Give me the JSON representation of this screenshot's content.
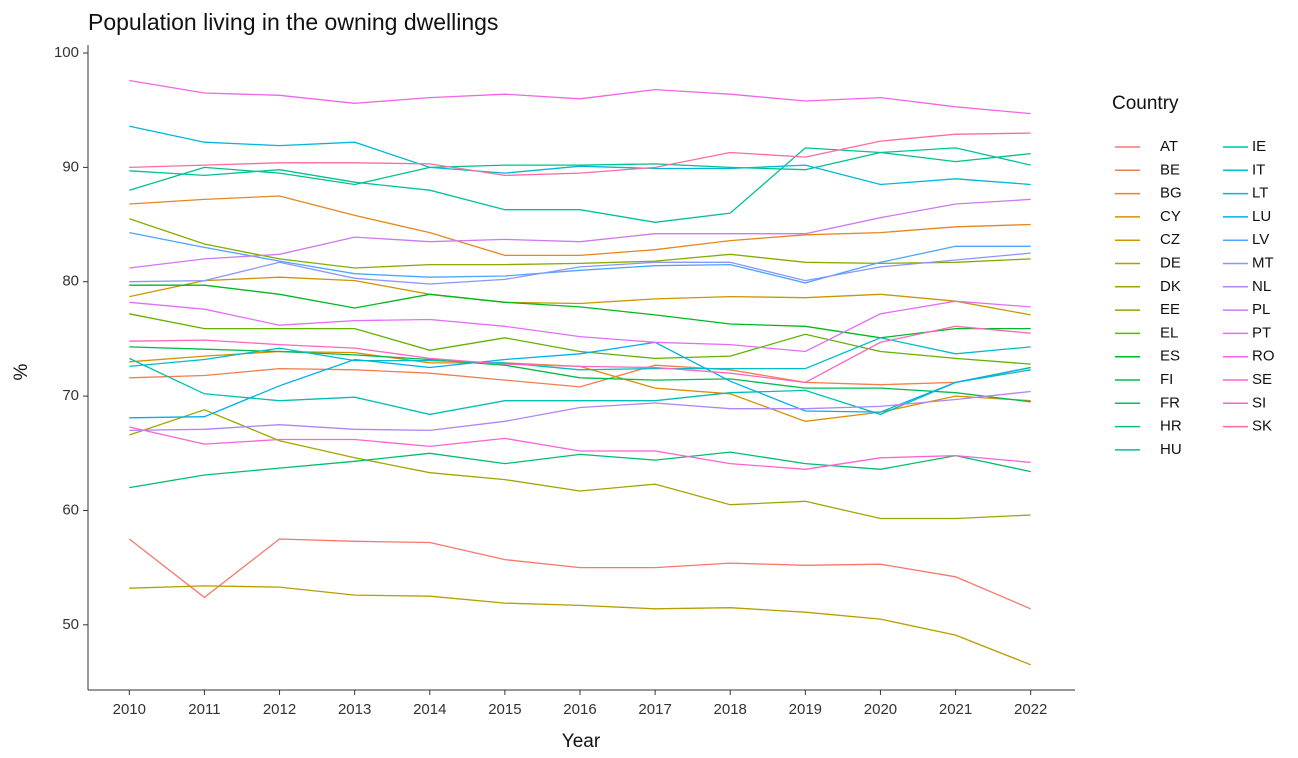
{
  "chart_data": {
    "type": "line",
    "title": "Population living in the owning dwellings",
    "x_label": "Year",
    "y_label": "%",
    "legend_title": "Country",
    "legend": "right",
    "grid": false,
    "x": [
      2010,
      2011,
      2012,
      2013,
      2014,
      2015,
      2016,
      2017,
      2018,
      2019,
      2020,
      2021,
      2022
    ],
    "xlim": [
      2009.45,
      2022.59
    ],
    "xticks": [
      2010,
      2011,
      2012,
      2013,
      2014,
      2015,
      2016,
      2017,
      2018,
      2019,
      2020,
      2021,
      2022
    ],
    "ylim": [
      44.3,
      100.7
    ],
    "yticks": [
      50,
      60,
      70,
      80,
      90,
      100
    ],
    "series": [
      {
        "name": "AT",
        "color": "#F8766D",
        "values": [
          57.5,
          52.4,
          57.5,
          57.3,
          57.2,
          55.7,
          55.0,
          55.0,
          55.4,
          55.2,
          55.3,
          54.2,
          51.4
        ]
      },
      {
        "name": "BE",
        "color": "#F17E4D",
        "values": [
          71.6,
          71.8,
          72.4,
          72.3,
          72.0,
          71.4,
          70.8,
          72.7,
          72.3,
          71.2,
          71.0,
          71.2,
          72.5
        ]
      },
      {
        "name": "BG",
        "color": "#E6861E",
        "values": [
          86.8,
          87.2,
          87.5,
          85.8,
          84.3,
          82.3,
          82.3,
          82.8,
          83.6,
          84.1,
          84.3,
          84.8,
          85.0
        ]
      },
      {
        "name": "CY",
        "color": "#D98F00",
        "values": [
          73.0,
          73.5,
          73.9,
          73.8,
          72.9,
          72.9,
          72.6,
          70.7,
          70.2,
          67.8,
          68.6,
          70.0,
          69.6
        ]
      },
      {
        "name": "CZ",
        "color": "#C99700",
        "values": [
          78.7,
          80.1,
          80.4,
          80.1,
          78.9,
          78.2,
          78.1,
          78.5,
          78.7,
          78.6,
          78.9,
          78.3,
          77.1
        ]
      },
      {
        "name": "DE",
        "color": "#B69E00",
        "values": [
          53.2,
          53.4,
          53.3,
          52.6,
          52.5,
          51.9,
          51.7,
          51.4,
          51.5,
          51.1,
          50.5,
          49.1,
          46.5
        ]
      },
      {
        "name": "DK",
        "color": "#A1A500",
        "values": [
          66.6,
          68.8,
          66.1,
          64.6,
          63.3,
          62.7,
          61.7,
          62.3,
          60.5,
          60.8,
          59.3,
          59.3,
          59.6
        ]
      },
      {
        "name": "EE",
        "color": "#87AB00",
        "values": [
          85.5,
          83.3,
          82.0,
          81.2,
          81.5,
          81.5,
          81.6,
          81.8,
          82.4,
          81.7,
          81.6,
          81.7,
          82.0
        ]
      },
      {
        "name": "EL",
        "color": "#63B100",
        "values": [
          77.2,
          75.9,
          75.9,
          75.9,
          74.0,
          75.1,
          73.9,
          73.3,
          73.5,
          75.4,
          73.9,
          73.3,
          72.8
        ]
      },
      {
        "name": "ES",
        "color": "#00B81F",
        "values": [
          79.7,
          79.7,
          78.9,
          77.7,
          78.9,
          78.2,
          77.8,
          77.1,
          76.3,
          76.1,
          75.1,
          75.9,
          75.9
        ]
      },
      {
        "name": "FI",
        "color": "#00BB4E",
        "values": [
          74.3,
          74.1,
          73.9,
          73.6,
          73.2,
          72.7,
          71.6,
          71.4,
          71.5,
          70.7,
          70.7,
          70.3,
          69.5
        ]
      },
      {
        "name": "FR",
        "color": "#00BE6C",
        "values": [
          62.0,
          63.1,
          63.7,
          64.3,
          65.0,
          64.1,
          64.9,
          64.4,
          65.1,
          64.1,
          63.6,
          64.8,
          63.4
        ]
      },
      {
        "name": "HR",
        "color": "#00C086",
        "values": [
          88.0,
          90.0,
          89.5,
          88.5,
          90.0,
          90.2,
          90.2,
          90.3,
          90.0,
          89.8,
          91.3,
          90.5,
          91.2
        ]
      },
      {
        "name": "HU",
        "color": "#00C19C",
        "values": [
          89.7,
          89.3,
          89.8,
          88.7,
          88.0,
          86.3,
          86.3,
          85.2,
          86.0,
          91.7,
          91.3,
          91.7,
          90.2
        ]
      },
      {
        "name": "IE",
        "color": "#00C0B2",
        "values": [
          73.3,
          70.2,
          69.6,
          69.9,
          68.4,
          69.6,
          69.6,
          69.6,
          70.3,
          70.5,
          68.4,
          71.2,
          72.3
        ]
      },
      {
        "name": "IT",
        "color": "#00BDC7",
        "values": [
          72.6,
          73.2,
          74.2,
          73.1,
          73.1,
          72.9,
          72.3,
          72.4,
          72.4,
          72.4,
          75.1,
          73.7,
          74.3
        ]
      },
      {
        "name": "LT",
        "color": "#00B8DA",
        "values": [
          93.6,
          92.2,
          91.9,
          92.2,
          90.0,
          89.5,
          90.1,
          89.9,
          89.9,
          90.2,
          88.5,
          89.0,
          88.5
        ]
      },
      {
        "name": "LU",
        "color": "#00B0EB",
        "values": [
          68.1,
          68.2,
          70.9,
          73.2,
          72.5,
          73.2,
          73.7,
          74.7,
          71.3,
          68.7,
          68.6,
          71.2,
          72.5
        ]
      },
      {
        "name": "LV",
        "color": "#4BA5FF",
        "values": [
          84.3,
          83.0,
          81.8,
          80.7,
          80.4,
          80.5,
          81.0,
          81.4,
          81.5,
          79.9,
          81.7,
          83.1,
          83.1
        ]
      },
      {
        "name": "MT",
        "color": "#8A95FF",
        "values": [
          80.0,
          80.1,
          81.7,
          80.3,
          79.8,
          80.2,
          81.3,
          81.7,
          81.7,
          80.1,
          81.3,
          81.9,
          82.5
        ]
      },
      {
        "name": "NL",
        "color": "#B085F5",
        "values": [
          67.0,
          67.1,
          67.5,
          67.1,
          67.0,
          67.8,
          69.0,
          69.4,
          68.9,
          68.9,
          69.1,
          69.7,
          70.4
        ]
      },
      {
        "name": "PL",
        "color": "#CE79F0",
        "values": [
          81.2,
          82.0,
          82.4,
          83.9,
          83.5,
          83.7,
          83.5,
          84.2,
          84.2,
          84.2,
          85.6,
          86.8,
          87.2
        ]
      },
      {
        "name": "PT",
        "color": "#E36EF6",
        "values": [
          78.2,
          77.6,
          76.2,
          76.6,
          76.7,
          76.1,
          75.2,
          74.7,
          74.5,
          73.9,
          77.2,
          78.3,
          77.8
        ]
      },
      {
        "name": "RO",
        "color": "#F265E7",
        "values": [
          97.6,
          96.5,
          96.3,
          95.6,
          96.1,
          96.4,
          96.0,
          96.8,
          96.4,
          95.8,
          96.1,
          95.3,
          94.7
        ]
      },
      {
        "name": "SE",
        "color": "#FC61D5",
        "values": [
          67.3,
          65.8,
          66.2,
          66.2,
          65.6,
          66.3,
          65.2,
          65.2,
          64.1,
          63.6,
          64.6,
          64.8,
          64.2
        ]
      },
      {
        "name": "SI",
        "color": "#FF65BC",
        "values": [
          74.8,
          74.9,
          74.5,
          74.2,
          73.3,
          72.8,
          72.6,
          72.5,
          72.0,
          71.2,
          74.7,
          76.1,
          75.5
        ]
      },
      {
        "name": "SK",
        "color": "#FF6C9C",
        "values": [
          90.0,
          90.2,
          90.4,
          90.4,
          90.3,
          89.3,
          89.5,
          90.0,
          91.3,
          90.9,
          92.3,
          92.9,
          93.0
        ]
      }
    ]
  }
}
